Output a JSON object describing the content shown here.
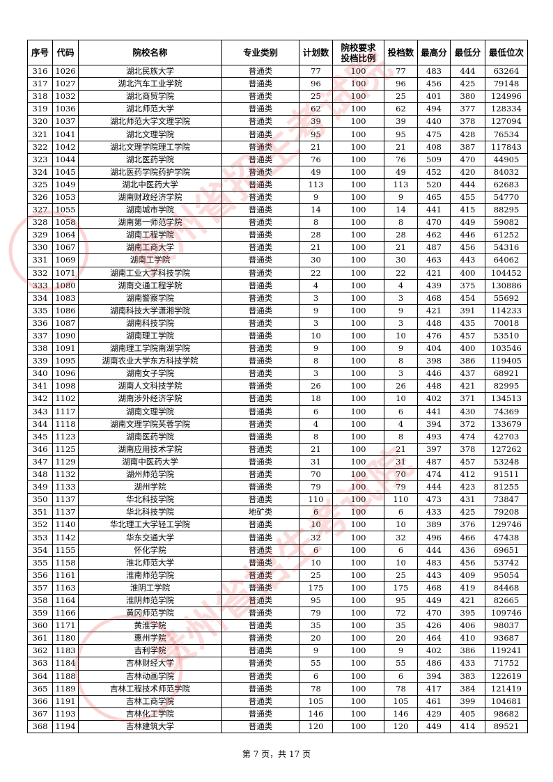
{
  "table": {
    "headers": [
      "序号",
      "代码",
      "院校名称",
      "专业类别",
      "计划数",
      "院校要求投档比例",
      "投档数",
      "最高分",
      "最低分",
      "最低位次"
    ],
    "header_ratio_line1": "院校要求",
    "header_ratio_line2": "投档比例",
    "rows": [
      [
        "316",
        "1026",
        "湖北民族大学",
        "普通类",
        "77",
        "100",
        "77",
        "483",
        "444",
        "63264"
      ],
      [
        "317",
        "1027",
        "湖北汽车工业学院",
        "普通类",
        "96",
        "100",
        "96",
        "456",
        "425",
        "79148"
      ],
      [
        "318",
        "1032",
        "湖北商贸学院",
        "普通类",
        "25",
        "100",
        "25",
        "401",
        "380",
        "124996"
      ],
      [
        "319",
        "1036",
        "湖北师范大学",
        "普通类",
        "62",
        "100",
        "62",
        "494",
        "377",
        "128334"
      ],
      [
        "320",
        "1037",
        "湖北师范大学文理学院",
        "普通类",
        "39",
        "100",
        "39",
        "440",
        "378",
        "127094"
      ],
      [
        "321",
        "1041",
        "湖北文理学院",
        "普通类",
        "95",
        "100",
        "95",
        "475",
        "428",
        "76534"
      ],
      [
        "322",
        "1042",
        "湖北文理学院理工学院",
        "普通类",
        "21",
        "100",
        "21",
        "408",
        "387",
        "117843"
      ],
      [
        "323",
        "1044",
        "湖北医药学院",
        "普通类",
        "76",
        "100",
        "76",
        "509",
        "470",
        "44905"
      ],
      [
        "324",
        "1045",
        "湖北医药学院药护学院",
        "普通类",
        "49",
        "100",
        "49",
        "452",
        "420",
        "84032"
      ],
      [
        "325",
        "1049",
        "湖北中医药大学",
        "普通类",
        "113",
        "100",
        "113",
        "520",
        "444",
        "62683"
      ],
      [
        "326",
        "1053",
        "湖南财政经济学院",
        "普通类",
        "9",
        "100",
        "9",
        "465",
        "455",
        "54770"
      ],
      [
        "327",
        "1055",
        "湖南城市学院",
        "普通类",
        "14",
        "100",
        "14",
        "441",
        "415",
        "88295"
      ],
      [
        "328",
        "1058",
        "湖南第一师范学院",
        "普通类",
        "8",
        "100",
        "8",
        "470",
        "449",
        "59082"
      ],
      [
        "329",
        "1064",
        "湖南工程学院",
        "普通类",
        "28",
        "100",
        "28",
        "462",
        "446",
        "61252"
      ],
      [
        "330",
        "1067",
        "湖南工商大学",
        "普通类",
        "21",
        "100",
        "21",
        "487",
        "456",
        "54316"
      ],
      [
        "331",
        "1069",
        "湖南工学院",
        "普通类",
        "30",
        "100",
        "30",
        "463",
        "443",
        "64062"
      ],
      [
        "332",
        "1071",
        "湖南工业大学科技学院",
        "普通类",
        "22",
        "100",
        "22",
        "421",
        "400",
        "104452"
      ],
      [
        "333",
        "1080",
        "湖南交通工程学院",
        "普通类",
        "4",
        "100",
        "4",
        "439",
        "375",
        "130886"
      ],
      [
        "334",
        "1083",
        "湖南警察学院",
        "普通类",
        "3",
        "100",
        "3",
        "468",
        "454",
        "55692"
      ],
      [
        "335",
        "1086",
        "湖南科技大学潇湘学院",
        "普通类",
        "9",
        "100",
        "9",
        "421",
        "391",
        "114233"
      ],
      [
        "336",
        "1087",
        "湖南科技学院",
        "普通类",
        "3",
        "100",
        "3",
        "448",
        "435",
        "70018"
      ],
      [
        "337",
        "1090",
        "湖南理工学院",
        "普通类",
        "10",
        "100",
        "10",
        "476",
        "457",
        "53510"
      ],
      [
        "338",
        "1091",
        "湖南理工学院南湖学院",
        "普通类",
        "9",
        "100",
        "9",
        "404",
        "400",
        "103546"
      ],
      [
        "339",
        "1095",
        "湖南农业大学东方科技学院",
        "普通类",
        "8",
        "100",
        "8",
        "398",
        "386",
        "119405"
      ],
      [
        "340",
        "1096",
        "湖南女子学院",
        "普通类",
        "3",
        "100",
        "3",
        "446",
        "437",
        "68921"
      ],
      [
        "341",
        "1098",
        "湖南人文科技学院",
        "普通类",
        "26",
        "100",
        "26",
        "448",
        "421",
        "82995"
      ],
      [
        "342",
        "1102",
        "湖南涉外经济学院",
        "普通类",
        "18",
        "100",
        "10",
        "402",
        "371",
        "134513"
      ],
      [
        "343",
        "1117",
        "湖南文理学院",
        "普通类",
        "6",
        "100",
        "6",
        "441",
        "430",
        "74369"
      ],
      [
        "344",
        "1118",
        "湖南文理学院芙蓉学院",
        "普通类",
        "4",
        "100",
        "4",
        "394",
        "372",
        "133679"
      ],
      [
        "345",
        "1123",
        "湖南医药学院",
        "普通类",
        "8",
        "100",
        "8",
        "493",
        "474",
        "42703"
      ],
      [
        "346",
        "1125",
        "湖南应用技术学院",
        "普通类",
        "21",
        "100",
        "21",
        "397",
        "378",
        "127262"
      ],
      [
        "347",
        "1129",
        "湖南中医药大学",
        "普通类",
        "31",
        "100",
        "31",
        "487",
        "457",
        "53248"
      ],
      [
        "348",
        "1132",
        "湖州师范学院",
        "普通类",
        "70",
        "100",
        "70",
        "474",
        "412",
        "91511"
      ],
      [
        "349",
        "1133",
        "湖州学院",
        "普通类",
        "79",
        "100",
        "79",
        "444",
        "423",
        "81255"
      ],
      [
        "350",
        "1137",
        "华北科技学院",
        "普通类",
        "110",
        "100",
        "110",
        "473",
        "431",
        "73847"
      ],
      [
        "351",
        "1137",
        "华北科技学院",
        "地矿类",
        "6",
        "100",
        "6",
        "433",
        "425",
        "79208"
      ],
      [
        "352",
        "1140",
        "华北理工大学轻工学院",
        "普通类",
        "10",
        "100",
        "10",
        "389",
        "376",
        "129746"
      ],
      [
        "353",
        "1142",
        "华东交通大学",
        "普通类",
        "32",
        "100",
        "32",
        "496",
        "466",
        "47438"
      ],
      [
        "354",
        "1155",
        "怀化学院",
        "普通类",
        "6",
        "100",
        "6",
        "444",
        "436",
        "69651"
      ],
      [
        "355",
        "1158",
        "淮北师范大学",
        "普通类",
        "10",
        "100",
        "10",
        "483",
        "456",
        "53742"
      ],
      [
        "356",
        "1161",
        "淮南师范学院",
        "普通类",
        "25",
        "100",
        "25",
        "443",
        "409",
        "95054"
      ],
      [
        "357",
        "1163",
        "淮阴工学院",
        "普通类",
        "175",
        "100",
        "175",
        "468",
        "419",
        "84468"
      ],
      [
        "358",
        "1164",
        "淮阴师范学院",
        "普通类",
        "95",
        "100",
        "95",
        "449",
        "421",
        "82665"
      ],
      [
        "359",
        "1166",
        "黄冈师范学院",
        "普通类",
        "79",
        "100",
        "72",
        "470",
        "395",
        "109746"
      ],
      [
        "360",
        "1171",
        "黄淮学院",
        "普通类",
        "35",
        "100",
        "35",
        "426",
        "406",
        "98037"
      ],
      [
        "361",
        "1180",
        "惠州学院",
        "普通类",
        "20",
        "100",
        "20",
        "464",
        "410",
        "93687"
      ],
      [
        "362",
        "1183",
        "吉利学院",
        "普通类",
        "9",
        "100",
        "9",
        "402",
        "386",
        "119241"
      ],
      [
        "363",
        "1184",
        "吉林财经大学",
        "普通类",
        "55",
        "100",
        "55",
        "486",
        "433",
        "71752"
      ],
      [
        "364",
        "1188",
        "吉林动画学院",
        "普通类",
        "6",
        "100",
        "6",
        "394",
        "383",
        "122619"
      ],
      [
        "365",
        "1189",
        "吉林工程技术师范学院",
        "普通类",
        "78",
        "100",
        "78",
        "417",
        "384",
        "121419"
      ],
      [
        "366",
        "1191",
        "吉林工商学院",
        "普通类",
        "105",
        "100",
        "105",
        "461",
        "399",
        "104681"
      ],
      [
        "367",
        "1193",
        "吉林化工学院",
        "普通类",
        "146",
        "100",
        "146",
        "429",
        "405",
        "98682"
      ],
      [
        "368",
        "1194",
        "吉林建筑大学",
        "普通类",
        "120",
        "100",
        "120",
        "449",
        "414",
        "89521"
      ]
    ]
  },
  "footer": "第 7 页，共 17 页",
  "watermark": {
    "text": "贵州省招生考试院",
    "color": "#e83a3a"
  }
}
